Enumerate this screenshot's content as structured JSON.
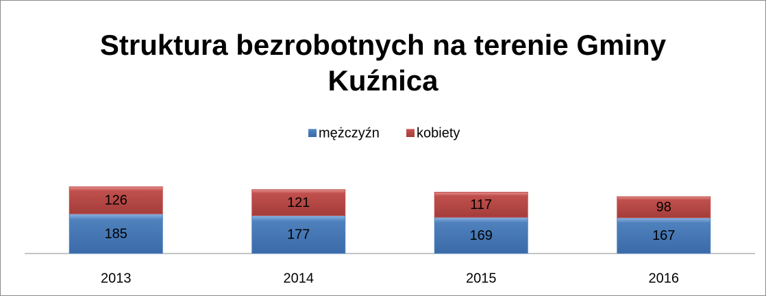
{
  "chart_data": {
    "type": "stacked_bar",
    "title": "Struktura bezrobotnych na terenie Gminy Kuźnica",
    "categories": [
      "2013",
      "2014",
      "2015",
      "2016"
    ],
    "series": [
      {
        "name": "mężczyźn",
        "color": "#4f81bd",
        "values": [
          185,
          177,
          169,
          167
        ]
      },
      {
        "name": "kobiety",
        "color": "#c0504d",
        "values": [
          126,
          121,
          117,
          98
        ]
      }
    ],
    "legend": "top"
  }
}
